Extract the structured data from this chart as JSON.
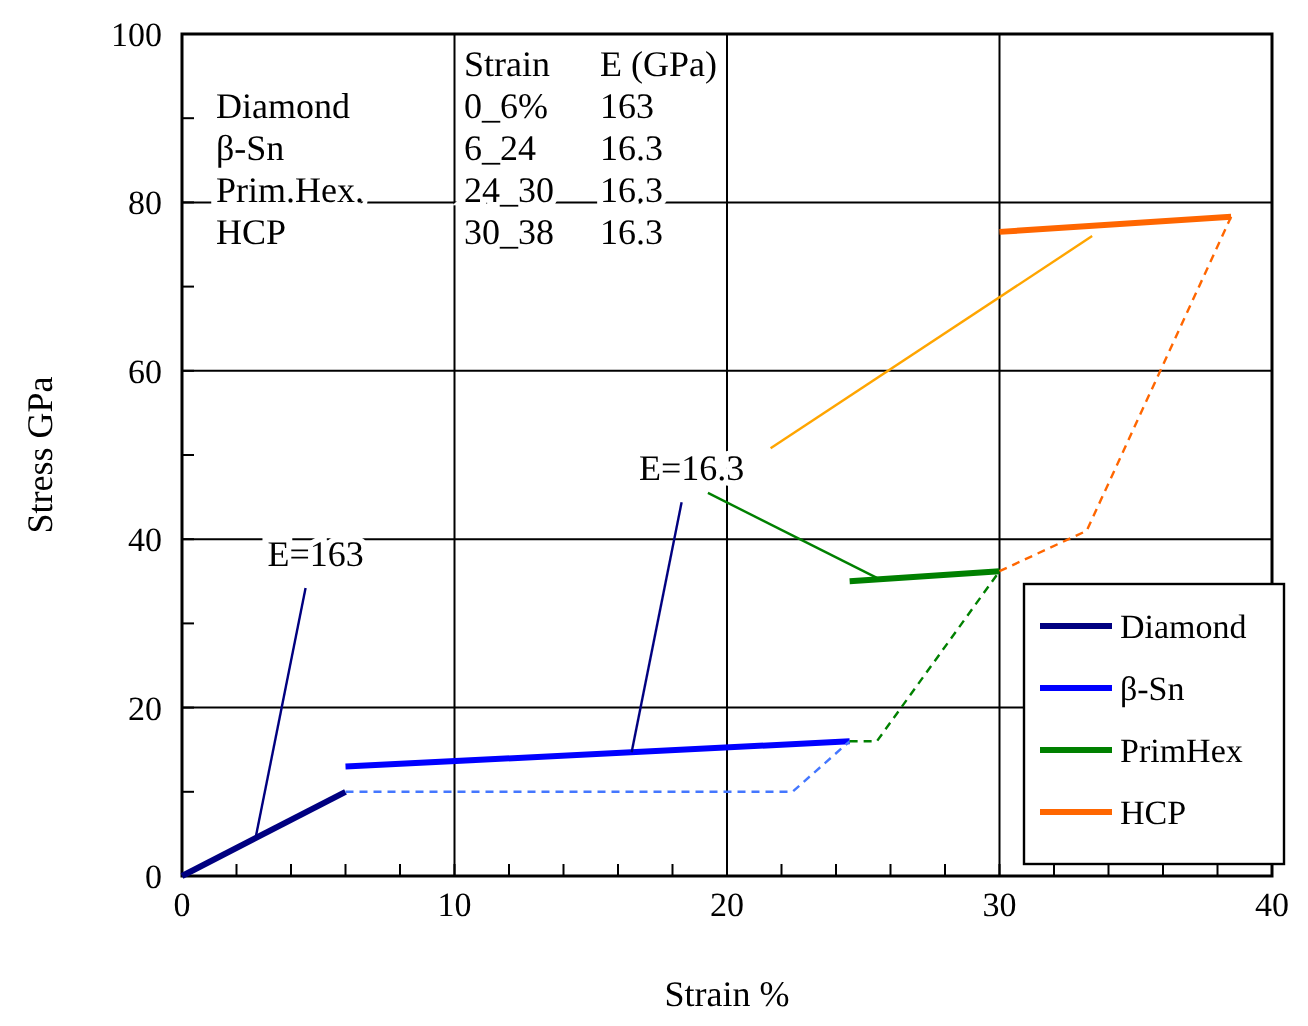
{
  "chart_data": {
    "type": "line",
    "xlabel": "Strain  %",
    "ylabel": "Stress GPa",
    "xlim": [
      0,
      40
    ],
    "ylim": [
      0,
      100
    ],
    "xticks": [
      0,
      {
        "value": 2,
        "label": null
      },
      {
        "value": 4,
        "label": null
      },
      {
        "value": 6,
        "label": null
      },
      {
        "value": 8,
        "label": null
      },
      10,
      {
        "value": 12,
        "label": null
      },
      {
        "value": 14,
        "label": null
      },
      {
        "value": 16,
        "label": null
      },
      {
        "value": 18,
        "label": null
      },
      20,
      {
        "value": 22,
        "label": null
      },
      {
        "value": 24,
        "label": null
      },
      {
        "value": 26,
        "label": null
      },
      {
        "value": 28,
        "label": null
      },
      30,
      {
        "value": 32,
        "label": null
      },
      {
        "value": 34,
        "label": null
      },
      {
        "value": 36,
        "label": null
      },
      {
        "value": 38,
        "label": null
      },
      40
    ],
    "yticks": [
      0,
      {
        "value": 10,
        "label": null
      },
      20,
      {
        "value": 30,
        "label": null
      },
      40,
      {
        "value": 50,
        "label": null
      },
      60,
      {
        "value": 70,
        "label": null
      },
      80,
      {
        "value": 90,
        "label": null
      },
      100
    ],
    "grid": true,
    "legend": "bottom right",
    "line_style": "solid",
    "series": [
      {
        "name": "Diamond",
        "color": "#000080",
        "x": [
          0,
          6
        ],
        "values": [
          0,
          10
        ]
      },
      {
        "name": "β-Sn",
        "color": "#0000ff",
        "x": [
          6,
          24.5
        ],
        "values": [
          13,
          16
        ]
      },
      {
        "name": "PrimHex",
        "color": "#008000",
        "x": [
          24.5,
          30
        ],
        "values": [
          35,
          36.2
        ]
      },
      {
        "name": "HCP",
        "color": "#ff6600",
        "x": [
          30,
          38.5
        ],
        "values": [
          76.5,
          78.3
        ]
      },
      {
        "color": "#4477ff",
        "line_style": "dashed",
        "x": [
          6,
          22.4,
          24.5
        ],
        "values": [
          10,
          10,
          16
        ]
      },
      {
        "color": "#008000",
        "line_style": "dashed",
        "x": [
          24.5,
          25.5,
          30
        ],
        "values": [
          16,
          16,
          36.2
        ]
      },
      {
        "color": "#ff6600",
        "line_style": "dashed",
        "x": [
          30,
          33.2,
          38.5
        ],
        "values": [
          36.2,
          41,
          78.3
        ]
      },
      {
        "color": "#008000",
        "x": [
          19.3,
          25.5
        ],
        "values": [
          45.5,
          35.4
        ]
      },
      {
        "color": "#ffa500",
        "x": [
          21.6,
          33.4
        ],
        "values": [
          50.8,
          76
        ]
      }
    ],
    "annotations": [
      "Strain",
      "E (GPa)",
      "Diamond",
      "0_6%",
      "163",
      "β-Sn",
      "6_24",
      "16.3",
      "Prim.Hex.",
      "24_30",
      "16.3",
      "HCP",
      "30_38",
      "16.3",
      {
        "text": "E=163",
        "x": 2.7,
        "y": 4.5
      },
      {
        "text": "E=16.3",
        "x": 16.5,
        "y": 14.7
      }
    ]
  }
}
